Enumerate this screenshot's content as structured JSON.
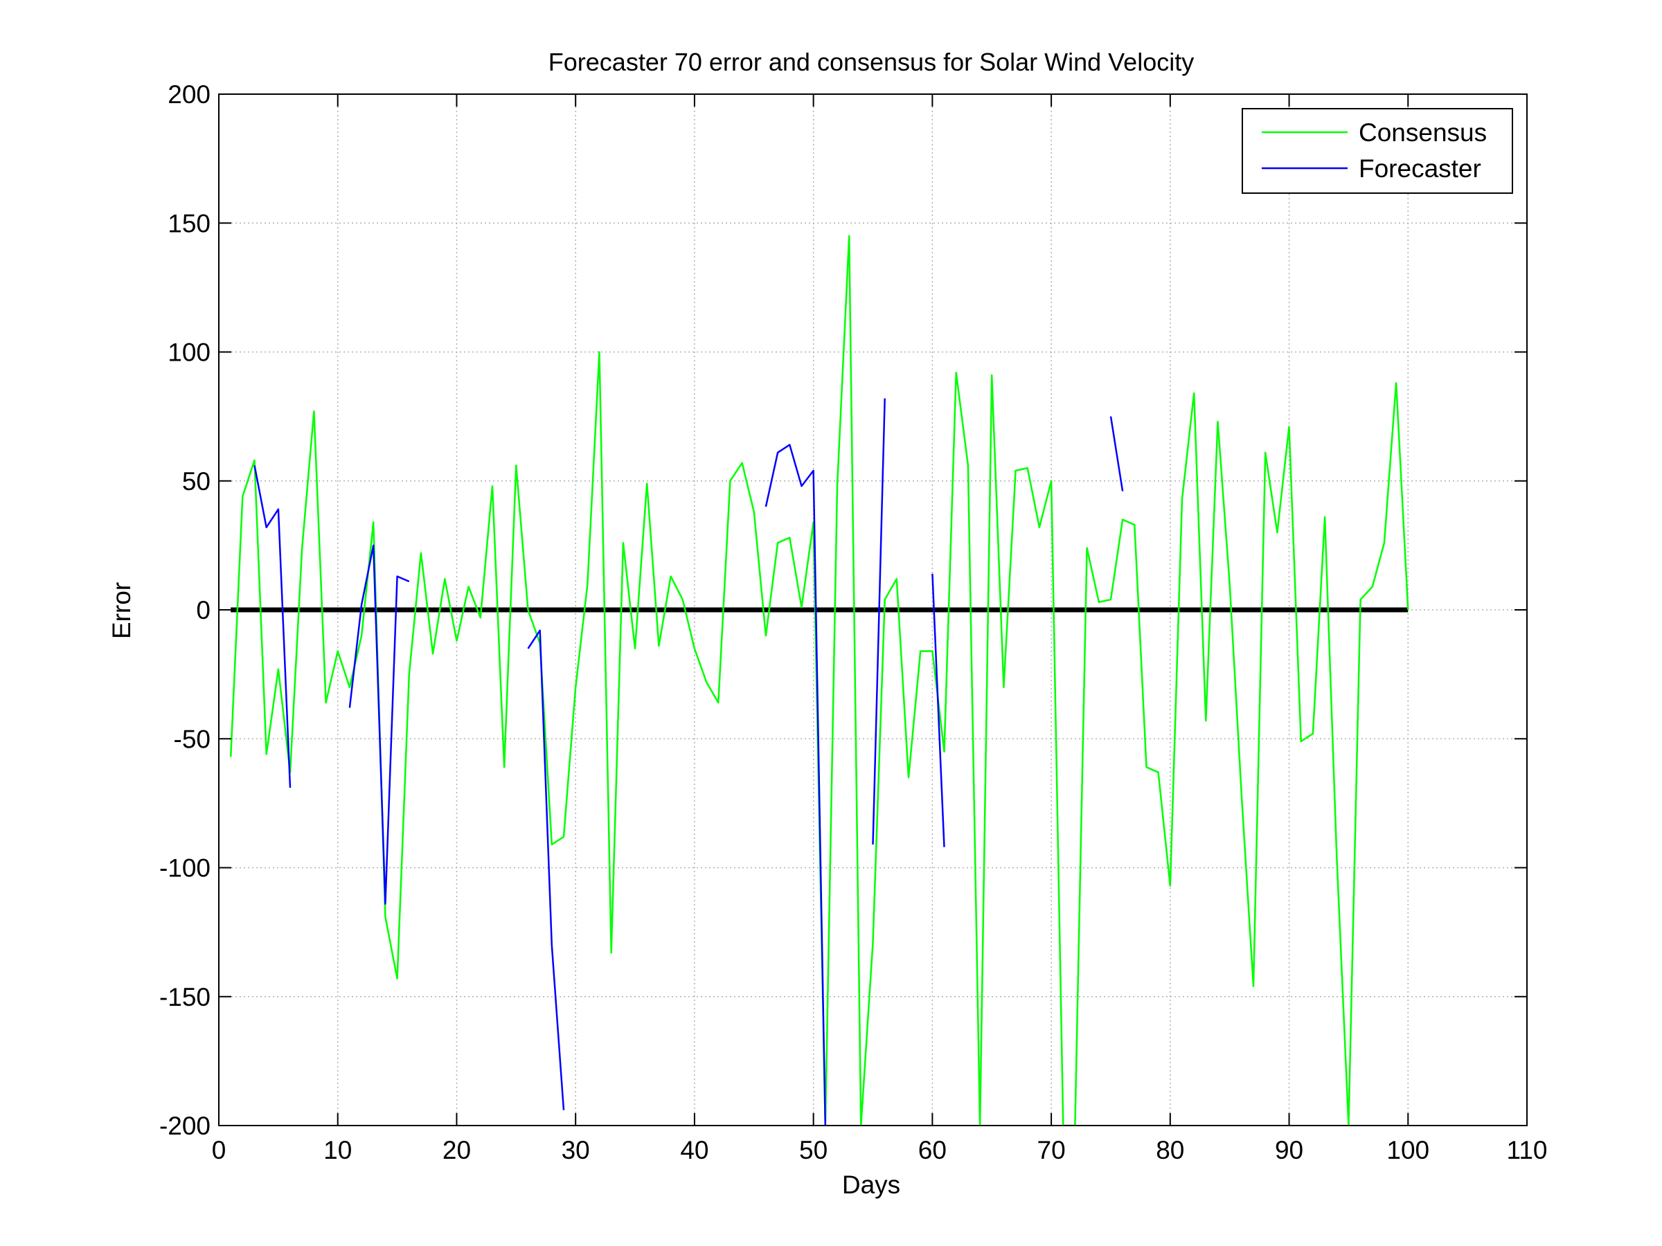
{
  "chart_data": {
    "type": "line",
    "title": "Forecaster 70 error and consensus for Solar Wind Velocity",
    "xlabel": "Days",
    "ylabel": "Error",
    "xlim": [
      0,
      110
    ],
    "ylim": [
      -200,
      200
    ],
    "xticks": [
      0,
      10,
      20,
      30,
      40,
      50,
      60,
      70,
      80,
      90,
      100,
      110
    ],
    "yticks": [
      -200,
      -150,
      -100,
      -50,
      0,
      50,
      100,
      150,
      200
    ],
    "grid": true,
    "legend_position": "top-right",
    "zero_line": {
      "y": 0,
      "color": "#000000"
    },
    "series": [
      {
        "name": "Consensus",
        "color": "#00ff00",
        "points": [
          [
            1,
            -57
          ],
          [
            2,
            44
          ],
          [
            3,
            58
          ],
          [
            4,
            -56
          ],
          [
            5,
            -23
          ],
          [
            6,
            -63
          ],
          [
            7,
            24
          ],
          [
            8,
            77
          ],
          [
            9,
            -36
          ],
          [
            10,
            -16
          ],
          [
            11,
            -30
          ],
          [
            12,
            -10
          ],
          [
            13,
            34
          ],
          [
            14,
            -119
          ],
          [
            15,
            -143
          ],
          [
            16,
            -25
          ],
          [
            17,
            22
          ],
          [
            18,
            -17
          ],
          [
            19,
            12
          ],
          [
            20,
            -12
          ],
          [
            21,
            9
          ],
          [
            22,
            -3
          ],
          [
            23,
            48
          ],
          [
            24,
            -61
          ],
          [
            25,
            56
          ],
          [
            26,
            0
          ],
          [
            27,
            -13
          ],
          [
            28,
            -91
          ],
          [
            29,
            -88
          ],
          [
            30,
            -30
          ],
          [
            31,
            10
          ],
          [
            32,
            100
          ],
          [
            33,
            -133
          ],
          [
            34,
            26
          ],
          [
            35,
            -15
          ],
          [
            36,
            49
          ],
          [
            37,
            -14
          ],
          [
            38,
            13
          ],
          [
            39,
            4
          ],
          [
            40,
            -15
          ],
          [
            41,
            -28
          ],
          [
            42,
            -36
          ],
          [
            43,
            50
          ],
          [
            44,
            57
          ],
          [
            45,
            38
          ],
          [
            46,
            -10
          ],
          [
            47,
            26
          ],
          [
            48,
            28
          ],
          [
            49,
            1
          ],
          [
            50,
            34
          ],
          [
            51,
            -200
          ],
          [
            52,
            48
          ],
          [
            53,
            145
          ],
          [
            54,
            -200
          ],
          [
            55,
            -129
          ],
          [
            56,
            4
          ],
          [
            57,
            12
          ],
          [
            58,
            -65
          ],
          [
            59,
            -16
          ],
          [
            60,
            -16
          ],
          [
            61,
            -55
          ],
          [
            62,
            92
          ],
          [
            63,
            56
          ],
          [
            64,
            -200
          ],
          [
            65,
            91
          ],
          [
            66,
            -30
          ],
          [
            67,
            54
          ],
          [
            68,
            55
          ],
          [
            69,
            32
          ],
          [
            70,
            50
          ],
          [
            71,
            -200
          ],
          [
            72,
            -200
          ],
          [
            73,
            24
          ],
          [
            74,
            3
          ],
          [
            75,
            4
          ],
          [
            76,
            35
          ],
          [
            77,
            33
          ],
          [
            78,
            -61
          ],
          [
            79,
            -63
          ],
          [
            80,
            -107
          ],
          [
            81,
            43
          ],
          [
            82,
            84
          ],
          [
            83,
            -43
          ],
          [
            84,
            73
          ],
          [
            85,
            10
          ],
          [
            86,
            -72
          ],
          [
            87,
            -146
          ],
          [
            88,
            61
          ],
          [
            89,
            30
          ],
          [
            90,
            71
          ],
          [
            91,
            -51
          ],
          [
            92,
            -48
          ],
          [
            93,
            36
          ],
          [
            94,
            -95
          ],
          [
            95,
            -200
          ],
          [
            96,
            4
          ],
          [
            97,
            9
          ],
          [
            98,
            26
          ],
          [
            99,
            88
          ],
          [
            100,
            0
          ]
        ]
      },
      {
        "name": "Forecaster",
        "color": "#0000ff",
        "segments": [
          [
            [
              3,
              56
            ],
            [
              4,
              32
            ],
            [
              5,
              39
            ],
            [
              6,
              -69
            ]
          ],
          [
            [
              11,
              -38
            ],
            [
              12,
              2
            ],
            [
              13,
              25
            ],
            [
              14,
              -114
            ],
            [
              15,
              13
            ],
            [
              16,
              11
            ]
          ],
          [
            [
              26,
              -15
            ],
            [
              27,
              -8
            ],
            [
              28,
              -130
            ],
            [
              29,
              -194
            ]
          ],
          [
            [
              46,
              40
            ],
            [
              47,
              61
            ],
            [
              48,
              64
            ],
            [
              49,
              48
            ],
            [
              50,
              54
            ],
            [
              51,
              -200
            ]
          ],
          [
            [
              55,
              -91
            ],
            [
              56,
              82
            ]
          ],
          [
            [
              60,
              14
            ],
            [
              61,
              -92
            ]
          ],
          [
            [
              75,
              75
            ],
            [
              76,
              46
            ]
          ]
        ]
      }
    ]
  }
}
